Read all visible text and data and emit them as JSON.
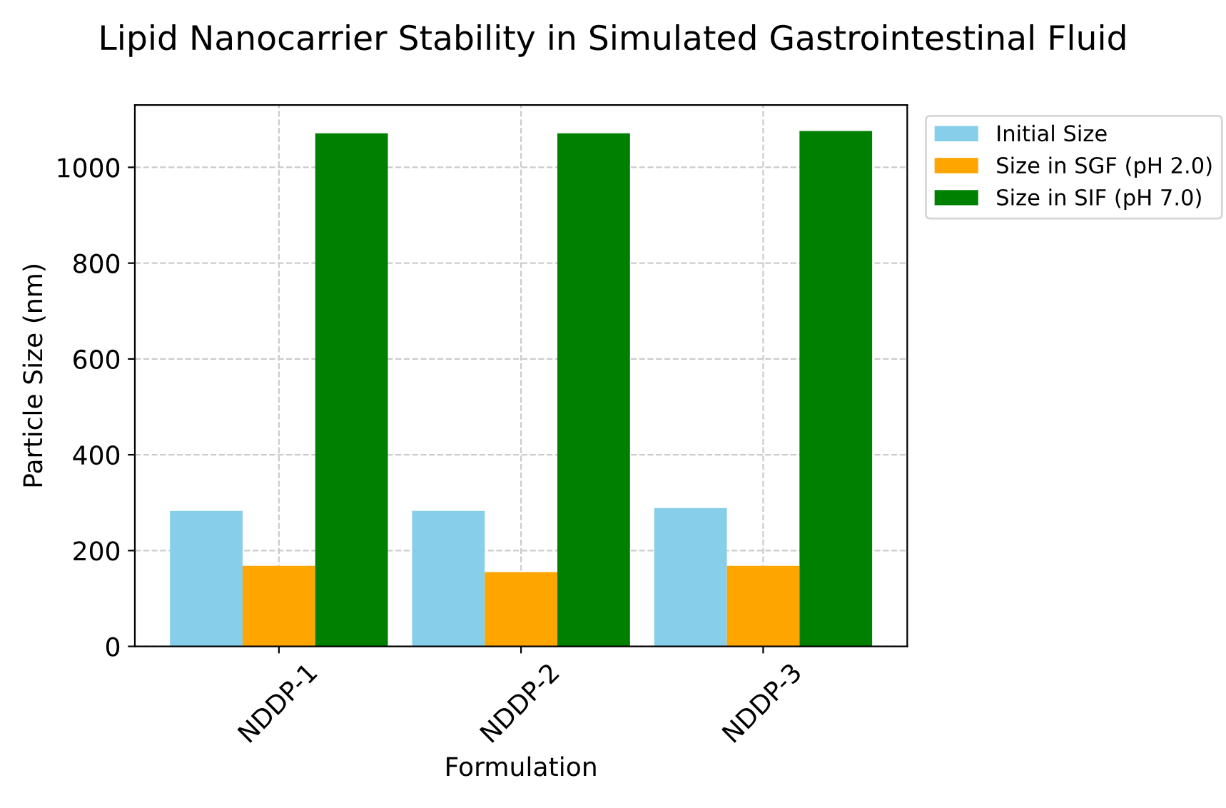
{
  "chart_data": {
    "type": "bar",
    "title": "Lipid Nanocarrier Stability in Simulated Gastrointestinal Fluid",
    "xlabel": "Formulation",
    "ylabel": "Particle Size (nm)",
    "categories": [
      "NDDP-1",
      "NDDP-2",
      "NDDP-3"
    ],
    "series": [
      {
        "name": "Initial Size",
        "color": "#87ceeb",
        "values": [
          283,
          283,
          289
        ]
      },
      {
        "name": "Size in SGF (pH 2.0)",
        "color": "#ffa500",
        "values": [
          168,
          155,
          168
        ]
      },
      {
        "name": "Size in SIF (pH 7.0)",
        "color": "#008000",
        "values": [
          1071,
          1071,
          1076
        ]
      }
    ],
    "ylim": [
      0,
      1130
    ],
    "yticks": [
      0,
      200,
      400,
      600,
      800,
      1000
    ],
    "grid": true,
    "legend": "top right"
  }
}
